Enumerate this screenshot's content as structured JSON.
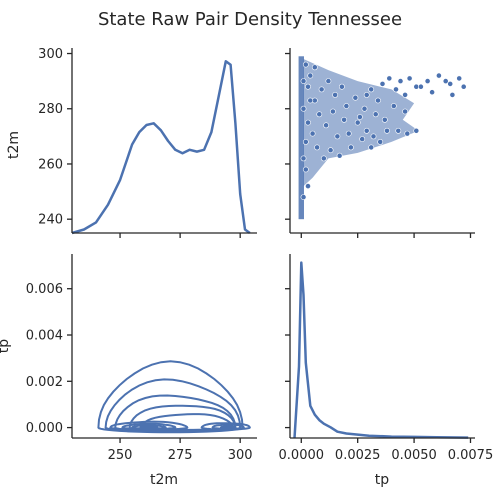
{
  "chart_data": {
    "type": "pairplot",
    "title": "State Raw Pair Density Tennessee",
    "variables": [
      "t2m",
      "tp"
    ],
    "colors": {
      "series": "#4c72b0",
      "axis": "#262626",
      "background": "#ffffff"
    },
    "grid": false,
    "axes": {
      "t2m": {
        "range": [
          230,
          307
        ],
        "ticks": [
          250,
          275,
          300
        ],
        "tick_labels": [
          "250",
          "275",
          "300"
        ]
      },
      "t2m_y": {
        "range": [
          235,
          302
        ],
        "ticks": [
          240,
          260,
          280,
          300
        ],
        "tick_labels": [
          "240",
          "260",
          "280",
          "300"
        ]
      },
      "tp": {
        "range": [
          -0.0005,
          0.0077
        ],
        "ticks": [
          0.0,
          0.0025,
          0.005,
          0.0075
        ],
        "tick_labels": [
          "0.0000",
          "0.0025",
          "0.0050",
          "0.0075"
        ]
      },
      "tp_y": {
        "range": [
          -0.00045,
          0.0075
        ],
        "ticks": [
          0.0,
          0.002,
          0.004,
          0.006
        ],
        "tick_labels": [
          "0.000",
          "0.002",
          "0.004",
          "0.006"
        ]
      }
    },
    "panels": {
      "t2m_kde": {
        "type": "line",
        "x": [
          230,
          235,
          240,
          245,
          250,
          255,
          258,
          261,
          264,
          267,
          270,
          273,
          276,
          279,
          282,
          285,
          288,
          291,
          294,
          296,
          298,
          300,
          302,
          304
        ],
        "density": [
          0.0,
          0.02,
          0.06,
          0.16,
          0.3,
          0.5,
          0.57,
          0.61,
          0.62,
          0.58,
          0.52,
          0.47,
          0.45,
          0.47,
          0.46,
          0.47,
          0.57,
          0.77,
          0.97,
          0.95,
          0.62,
          0.22,
          0.02,
          0.0
        ]
      },
      "tp_kde": {
        "type": "line",
        "x": [
          -0.0003,
          -0.0001,
          0.0,
          0.0001,
          0.0002,
          0.0004,
          0.0006,
          0.0008,
          0.001,
          0.0013,
          0.0016,
          0.002,
          0.003,
          0.004,
          0.005,
          0.006,
          0.0074
        ],
        "density": [
          0.0,
          0.4,
          0.98,
          0.8,
          0.42,
          0.18,
          0.13,
          0.1,
          0.08,
          0.06,
          0.035,
          0.025,
          0.013,
          0.008,
          0.006,
          0.004,
          0.002
        ]
      },
      "scatter": {
        "type": "scatter",
        "t2m_range_at_zero_tp": [
          240,
          299
        ],
        "points": [
          [
            0.0048,
            291
          ],
          [
            0.0051,
            288
          ],
          [
            0.0056,
            290
          ],
          [
            0.0058,
            286
          ],
          [
            0.0061,
            292
          ],
          [
            0.0064,
            290
          ],
          [
            0.0066,
            289
          ],
          [
            0.0067,
            285
          ],
          [
            0.007,
            291
          ],
          [
            0.0072,
            288
          ],
          [
            0.0044,
            290
          ],
          [
            0.0042,
            287
          ],
          [
            0.0039,
            291
          ],
          [
            0.0046,
            285
          ],
          [
            0.0036,
            289
          ],
          [
            0.0034,
            283
          ],
          [
            0.0031,
            287
          ],
          [
            0.0029,
            285
          ],
          [
            0.0053,
            288
          ],
          [
            0.0046,
            279
          ],
          [
            0.0041,
            281
          ],
          [
            0.0037,
            276
          ],
          [
            0.0033,
            278
          ],
          [
            0.0028,
            280
          ],
          [
            0.0051,
            272
          ],
          [
            0.0047,
            271
          ],
          [
            0.0043,
            272
          ],
          [
            0.0038,
            272
          ],
          [
            0.0035,
            268
          ],
          [
            0.0031,
            266
          ],
          [
            0.0027,
            269
          ],
          [
            0.0022,
            266
          ],
          [
            0.0025,
            275
          ],
          [
            0.0029,
            272
          ],
          [
            0.0024,
            284
          ],
          [
            0.002,
            281
          ],
          [
            0.0018,
            288
          ],
          [
            0.0015,
            285
          ],
          [
            0.0012,
            290
          ],
          [
            0.0009,
            287
          ],
          [
            0.0019,
            276
          ],
          [
            0.0016,
            270
          ],
          [
            0.0013,
            265
          ],
          [
            0.001,
            262
          ],
          [
            0.0008,
            278
          ],
          [
            0.0006,
            283
          ],
          [
            0.0004,
            292
          ],
          [
            0.0003,
            288
          ],
          [
            0.0005,
            271
          ],
          [
            0.0007,
            266
          ],
          [
            0.0011,
            274
          ],
          [
            0.0014,
            279
          ],
          [
            0.0017,
            263
          ],
          [
            0.0021,
            271
          ],
          [
            0.0026,
            277
          ],
          [
            0.0032,
            270
          ],
          [
            0.0003,
            275
          ],
          [
            0.0002,
            268
          ],
          [
            0.0001,
            280
          ],
          [
            0.0002,
            258
          ],
          [
            0.0001,
            262
          ],
          [
            0.0004,
            283
          ],
          [
            0.0006,
            295
          ],
          [
            0.0002,
            296
          ],
          [
            0.0001,
            290
          ],
          [
            0.0003,
            252
          ],
          [
            0.0001,
            248
          ]
        ]
      },
      "kde2d": {
        "type": "contour",
        "levels": [
          {
            "cx": 271,
            "cy": 0.0,
            "rx": 30,
            "ry_up": 0.0027,
            "ry_down": 0.0002
          },
          {
            "cx": 272,
            "cy": 0.0,
            "rx": 28,
            "ry_up": 0.002,
            "ry_down": 0.00018
          },
          {
            "cx": 273,
            "cy": 0.0,
            "rx": 25,
            "ry_up": 0.0014,
            "ry_down": 0.00016
          },
          {
            "cx": 276,
            "cy": 0.0,
            "rx": 22,
            "ry_up": 0.001,
            "ry_down": 0.00013
          },
          {
            "cx": 278,
            "cy": 0.0,
            "rx": 19,
            "ry_up": 0.0006,
            "ry_down": 0.0001
          },
          {
            "cx": 262,
            "cy": 0.0,
            "rx": 16,
            "ry_up": 0.00025,
            "ry_down": 9e-05
          },
          {
            "cx": 262,
            "cy": 0.0,
            "rx": 11,
            "ry_up": 0.00016,
            "ry_down": 6e-05
          },
          {
            "cx": 262,
            "cy": 0.0,
            "rx": 7,
            "ry_up": 0.0001,
            "ry_down": 4e-05
          },
          {
            "cx": 262,
            "cy": 0.0,
            "rx": 3.5,
            "ry_up": 5e-05,
            "ry_down": 2e-05
          },
          {
            "cx": 294,
            "cy": 0.0,
            "rx": 10,
            "ry_up": 0.0002,
            "ry_down": 8e-05
          },
          {
            "cx": 295,
            "cy": 0.0,
            "rx": 6.5,
            "ry_up": 0.00013,
            "ry_down": 5e-05
          },
          {
            "cx": 295,
            "cy": 0.0,
            "rx": 3,
            "ry_up": 6e-05,
            "ry_down": 3e-05
          }
        ]
      }
    }
  }
}
